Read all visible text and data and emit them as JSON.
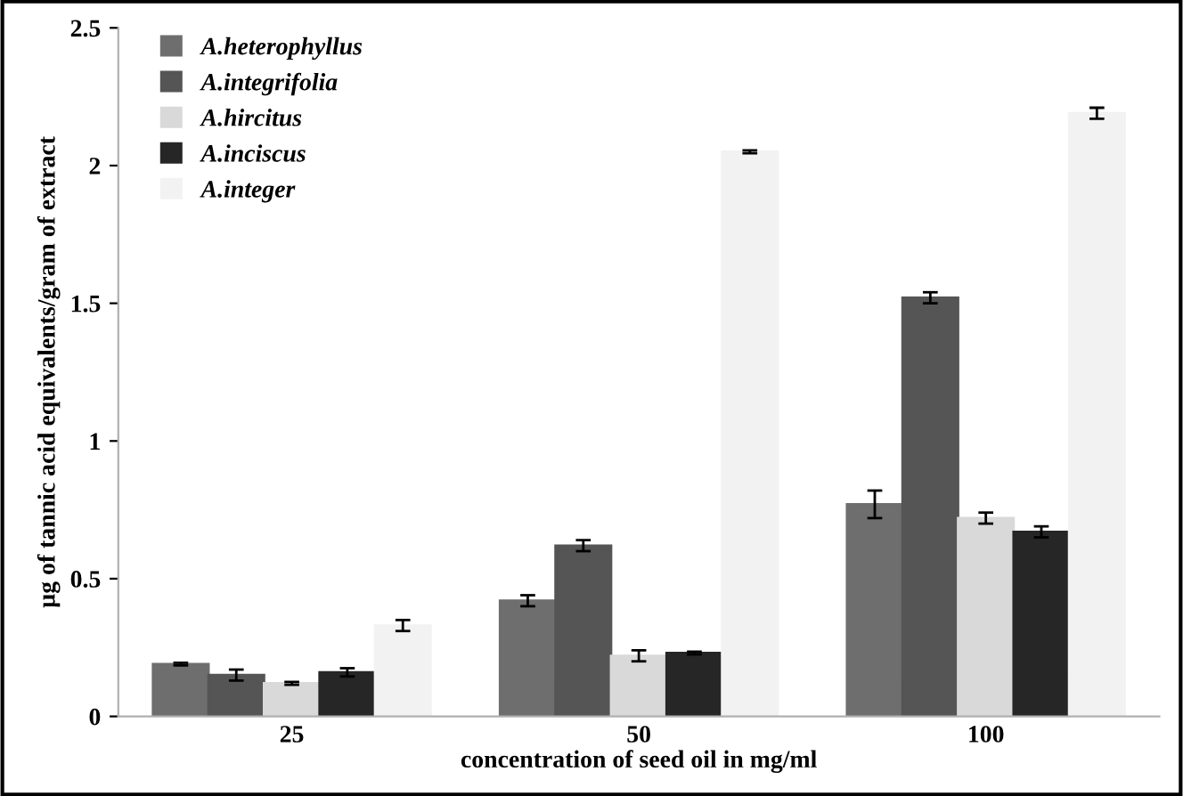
{
  "chart_data": {
    "type": "bar",
    "xlabel": "concentration of seed oil in mg/ml",
    "ylabel": "µg of tannic acid equivalents/gram of extract",
    "categories": [
      "25",
      "50",
      "100"
    ],
    "series": [
      {
        "name": "A.heterophyllus",
        "color": "#6e6e6e",
        "values": [
          0.19,
          0.42,
          0.77
        ],
        "errors": [
          0.005,
          0.02,
          0.05
        ]
      },
      {
        "name": "A.integrifolia",
        "color": "#555555",
        "values": [
          0.15,
          0.62,
          1.52
        ],
        "errors": [
          0.02,
          0.02,
          0.02
        ]
      },
      {
        "name": "A.hircitus",
        "color": "#d9d9d9",
        "values": [
          0.12,
          0.22,
          0.72
        ],
        "errors": [
          0.005,
          0.02,
          0.02
        ]
      },
      {
        "name": "A.inciscus",
        "color": "#262626",
        "values": [
          0.16,
          0.23,
          0.67
        ],
        "errors": [
          0.015,
          0.005,
          0.02
        ]
      },
      {
        "name": "A.integer",
        "color": "#f2f2f2",
        "values": [
          0.33,
          2.05,
          2.19
        ],
        "errors": [
          0.02,
          0.005,
          0.02
        ]
      }
    ],
    "ylim": [
      0,
      2.5
    ],
    "yticks": [
      0,
      0.5,
      1,
      1.5,
      2,
      2.5
    ],
    "grid": false,
    "legend": "top left"
  }
}
